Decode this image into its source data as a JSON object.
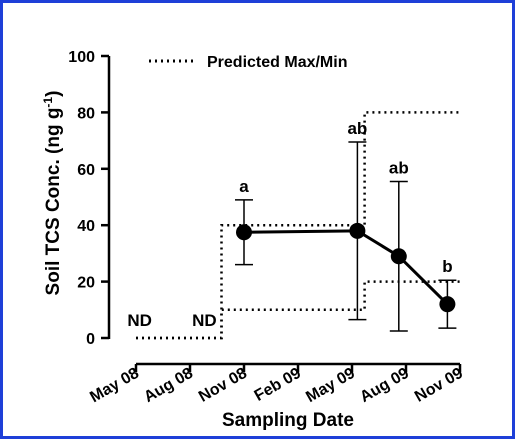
{
  "chart_data": {
    "type": "line",
    "xlabel": "Sampling Date",
    "ylabel_main": "Soil TCS Conc. (ng g",
    "ylabel_sup": "-1",
    "ylabel_tail": ")",
    "ylim": [
      0,
      100
    ],
    "y_ticks": [
      0,
      20,
      40,
      60,
      80,
      100
    ],
    "x_ticks": [
      {
        "label": "May 08",
        "pos": 0
      },
      {
        "label": "Aug 08",
        "pos": 3
      },
      {
        "label": "Nov 08",
        "pos": 6
      },
      {
        "label": "Feb 09",
        "pos": 9
      },
      {
        "label": "May 09",
        "pos": 12
      },
      {
        "label": "Aug 09",
        "pos": 15
      },
      {
        "label": "Nov 09",
        "pos": 18
      }
    ],
    "xlim": [
      0,
      18
    ],
    "grid": false,
    "series": [
      {
        "points": [
          {
            "x": 6,
            "y": 37.5,
            "err_low": 26,
            "err_high": 49,
            "label": "a"
          },
          {
            "x": 12.3,
            "y": 38,
            "err_low": 6.5,
            "err_high": 69.5,
            "label": "ab"
          },
          {
            "x": 14.6,
            "y": 29,
            "err_low": 2.5,
            "err_high": 55.5,
            "label": "ab"
          },
          {
            "x": 17.3,
            "y": 12,
            "err_low": 3.5,
            "err_high": 20.5,
            "label": "b"
          }
        ]
      }
    ],
    "predicted_max": [
      [
        0,
        0
      ],
      [
        4.75,
        0
      ],
      [
        4.75,
        40
      ],
      [
        12.7,
        40
      ],
      [
        12.7,
        80
      ],
      [
        18,
        80
      ]
    ],
    "predicted_min": [
      [
        0,
        0
      ],
      [
        4.75,
        0
      ],
      [
        4.75,
        10
      ],
      [
        12.7,
        10
      ],
      [
        12.7,
        20
      ],
      [
        18,
        20
      ]
    ],
    "nd_labels": [
      {
        "text": "ND",
        "x": 0.2
      },
      {
        "text": "ND",
        "x": 3.8
      }
    ],
    "legend": {
      "label": "Predicted Max/Min",
      "position": "top-left"
    }
  }
}
